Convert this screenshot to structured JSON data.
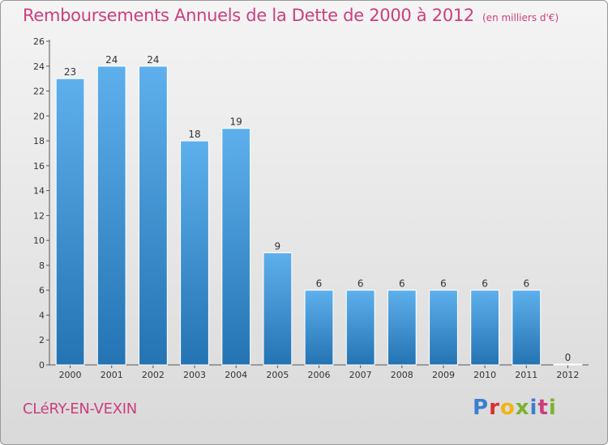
{
  "header": {
    "title": "Remboursements Annuels de la Dette de 2000 à 2012",
    "subtitle": "(en milliers d'€)"
  },
  "footer": {
    "commune": "CLéRY-EN-VEXIN",
    "logo_letters": [
      "P",
      "r",
      "o",
      "x",
      "i",
      "t",
      "i"
    ]
  },
  "colors": {
    "title": "#cc3e7f",
    "bar_top": "#5eb0ec",
    "bar_bottom": "#2473b3",
    "logo": [
      "#3a7fd0",
      "#d6312e",
      "#f2b40f",
      "#7ab32e",
      "#3a7fd0",
      "#cc3e7f",
      "#7ab32e"
    ]
  },
  "chart_data": {
    "type": "bar",
    "title": "Remboursements Annuels de la Dette de 2000 à 2012",
    "subtitle": "(en milliers d'€)",
    "categories": [
      "2000",
      "2001",
      "2002",
      "2003",
      "2004",
      "2005",
      "2006",
      "2007",
      "2008",
      "2009",
      "2010",
      "2011",
      "2012"
    ],
    "values": [
      23,
      24,
      24,
      18,
      19,
      9,
      6,
      6,
      6,
      6,
      6,
      6,
      0
    ],
    "ylim": [
      0,
      26
    ],
    "yticks": [
      0,
      2,
      4,
      6,
      8,
      10,
      12,
      14,
      16,
      18,
      20,
      22,
      24,
      26
    ],
    "xlabel": "",
    "ylabel": "",
    "grid": false
  }
}
